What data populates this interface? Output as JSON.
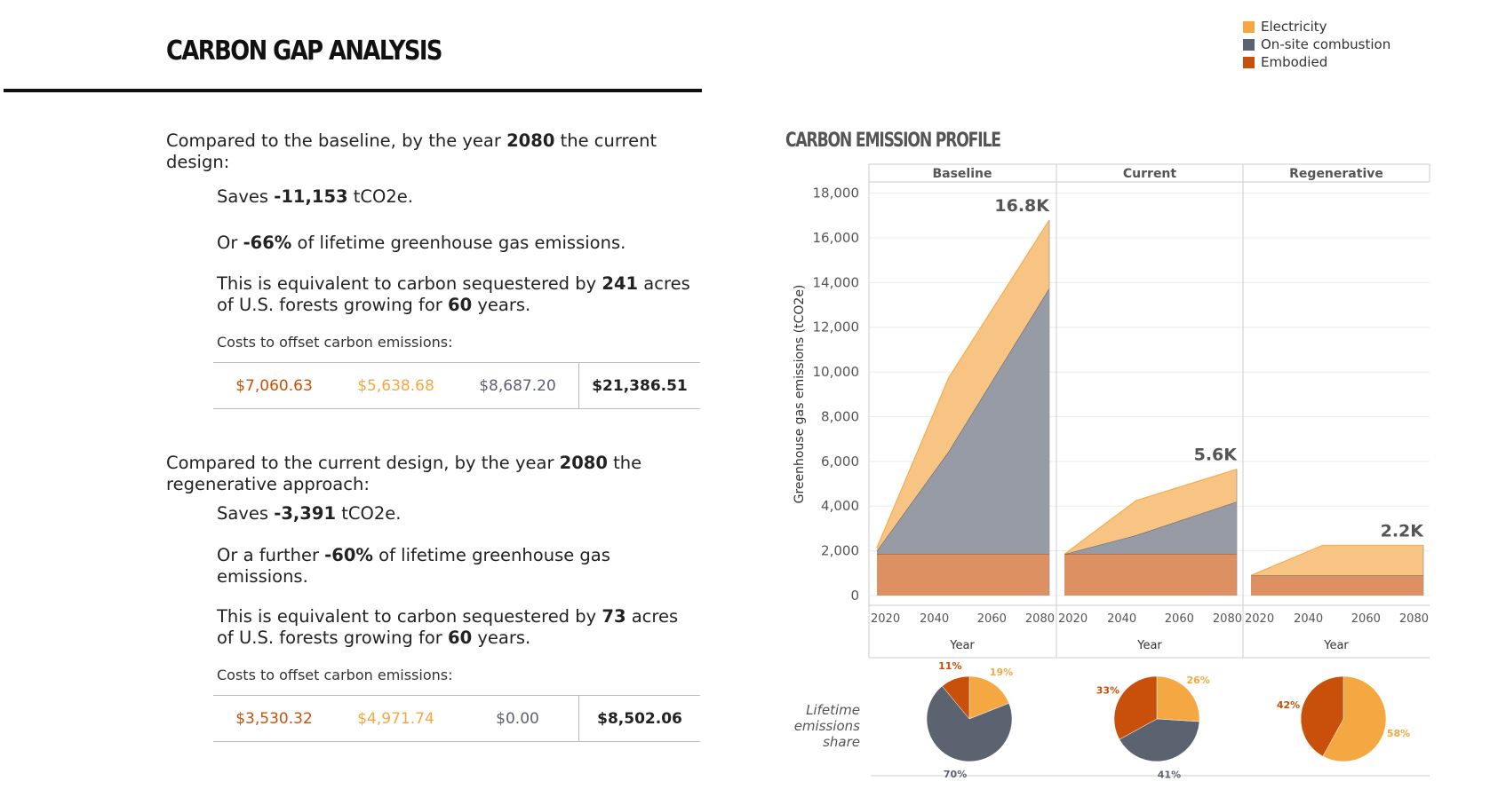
{
  "header": {
    "title": "CARBON GAP ANALYSIS"
  },
  "legend": [
    {
      "label": "Electricity",
      "color": "#f5a742"
    },
    {
      "label": "On-site combustion",
      "color": "#5b6270"
    },
    {
      "label": "Embodied",
      "color": "#c9500b"
    }
  ],
  "section1": {
    "intro_a": "Compared to the baseline, by the year ",
    "intro_year": "2080",
    "intro_b": " the current",
    "intro_c": "design:",
    "saves_a": "Saves ",
    "saves_value": "-11,153",
    "saves_b": " tCO2e.",
    "or_a": "Or ",
    "or_value": "-66%",
    "or_b": " of lifetime greenhouse gas emissions.",
    "eq_a": "This is equivalent to carbon sequestered by ",
    "eq_acres": "241",
    "eq_b": " acres",
    "eq_c": "of U.S. forests growing for ",
    "eq_years": "60",
    "eq_d": " years.",
    "costs_label": "Costs to offset carbon emissions:",
    "costs": [
      "$7,060.63",
      "$5,638.68",
      "$8,687.20"
    ],
    "costs_total": "$21,386.51"
  },
  "section2": {
    "intro_a": "Compared to the current design, by the year ",
    "intro_year": "2080",
    "intro_b": " the",
    "intro_c": "regenerative approach:",
    "saves_a": "Saves ",
    "saves_value": "-3,391",
    "saves_b": " tCO2e.",
    "or_a": "Or a further ",
    "or_value": "-60%",
    "or_b": " of lifetime greenhouse gas",
    "or_c": "emissions.",
    "eq_a": "This is equivalent to carbon sequestered by ",
    "eq_acres": "73",
    "eq_b": " acres",
    "eq_c": "of U.S. forests growing for ",
    "eq_years": "60",
    "eq_d": " years.",
    "costs_label": "Costs to offset carbon emissions:",
    "costs": [
      "$3,530.32",
      "$4,971.74",
      "$0.00"
    ],
    "costs_total": "$8,502.06"
  },
  "cost_colors": [
    "#c9500b",
    "#f5a742",
    "#5b6270"
  ],
  "chart_title": "CARBON EMISSION PROFILE",
  "chart_data": {
    "type": "area",
    "ylabel": "Greenhouse gas emissions (tCO2e)",
    "xlabel": "Year",
    "yticks": [
      0,
      2000,
      4000,
      6000,
      8000,
      10000,
      12000,
      14000,
      16000,
      18000
    ],
    "ytick_labels": [
      "0",
      "2,000",
      "4,000",
      "6,000",
      "8,000",
      "10,000",
      "12,000",
      "14,000",
      "16,000",
      "18,000"
    ],
    "ylim": [
      0,
      18500
    ],
    "xticks": [
      2020,
      2040,
      2060,
      2080
    ],
    "xlim": [
      2020,
      2080
    ],
    "panels": [
      {
        "name": "Baseline",
        "total_label": "16.8K",
        "x": [
          2020,
          2045,
          2080
        ],
        "series": [
          {
            "name": "Embodied",
            "values": [
              1850,
              1850,
              1850
            ]
          },
          {
            "name": "On-site combustion",
            "values": [
              150,
              4600,
              11900
            ]
          },
          {
            "name": "Electricity",
            "values": [
              150,
              3300,
              3050
            ]
          }
        ],
        "lifetime_share": {
          "Electricity": 19,
          "On-site combustion": 70,
          "Embodied": 11
        }
      },
      {
        "name": "Current",
        "total_label": "5.6K",
        "x": [
          2020,
          2045,
          2080
        ],
        "series": [
          {
            "name": "Embodied",
            "values": [
              1850,
              1850,
              1850
            ]
          },
          {
            "name": "On-site combustion",
            "values": [
              0,
              850,
              2350
            ]
          },
          {
            "name": "Electricity",
            "values": [
              0,
              1550,
              1450
            ]
          }
        ],
        "lifetime_share": {
          "Electricity": 26,
          "On-site combustion": 41,
          "Embodied": 33
        }
      },
      {
        "name": "Regenerative",
        "total_label": "2.2K",
        "x": [
          2020,
          2045,
          2080
        ],
        "series": [
          {
            "name": "Embodied",
            "values": [
              900,
              900,
              900
            ]
          },
          {
            "name": "On-site combustion",
            "values": [
              0,
              0,
              0
            ]
          },
          {
            "name": "Electricity",
            "values": [
              0,
              1350,
              1350
            ]
          }
        ],
        "lifetime_share": {
          "Electricity": 58,
          "On-site combustion": 0,
          "Embodied": 42
        }
      }
    ],
    "pie_row_label": "Lifetime\nemissions\nshare",
    "grid": true
  }
}
